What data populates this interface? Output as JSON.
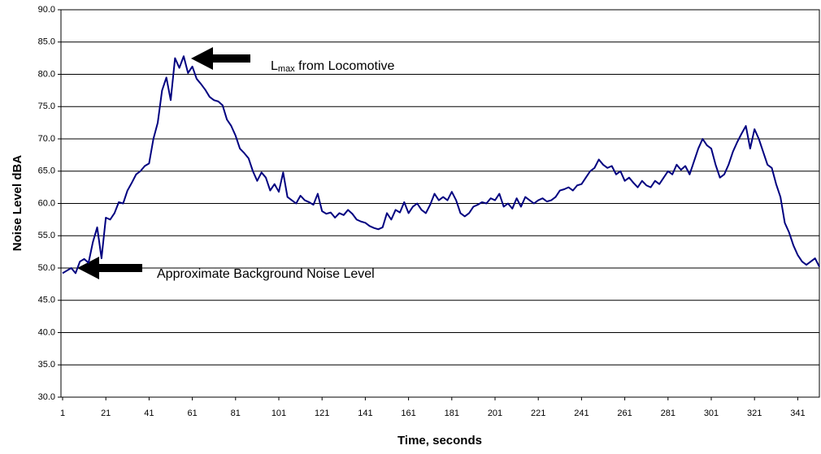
{
  "chart_data": {
    "type": "line",
    "xlabel": "Time, seconds",
    "ylabel": "Noise Level dBA",
    "annotations": [
      {
        "text": "L",
        "subscript": "max",
        "rest": " from Locomotive"
      },
      {
        "text": "Approximate Background Noise Level"
      }
    ],
    "x": [
      1,
      3,
      5,
      7,
      9,
      11,
      13,
      15,
      17,
      19,
      21,
      23,
      25,
      27,
      29,
      31,
      33,
      35,
      37,
      39,
      41,
      43,
      45,
      47,
      49,
      51,
      53,
      55,
      57,
      59,
      61,
      63,
      65,
      67,
      69,
      71,
      73,
      75,
      77,
      79,
      81,
      83,
      85,
      87,
      89,
      91,
      93,
      95,
      97,
      99,
      101,
      103,
      105,
      107,
      109,
      111,
      113,
      115,
      117,
      119,
      121,
      123,
      125,
      127,
      129,
      131,
      133,
      135,
      137,
      139,
      141,
      143,
      145,
      147,
      149,
      151,
      153,
      155,
      157,
      159,
      161,
      163,
      165,
      167,
      169,
      171,
      173,
      175,
      177,
      179,
      181,
      183,
      185,
      187,
      189,
      191,
      193,
      195,
      197,
      199,
      201,
      203,
      205,
      207,
      209,
      211,
      213,
      215,
      217,
      219,
      221,
      223,
      225,
      227,
      229,
      231,
      233,
      235,
      237,
      239,
      241,
      243,
      245,
      247,
      249,
      251,
      253,
      255,
      257,
      259,
      261,
      263,
      265,
      267,
      269,
      271,
      273,
      275,
      277,
      279,
      281,
      283,
      285,
      287,
      289,
      291,
      293,
      295,
      297,
      299,
      301,
      303,
      305,
      307,
      309,
      311,
      313,
      315,
      317,
      319,
      321,
      323,
      325,
      327,
      329,
      331,
      333,
      335,
      337,
      339,
      341,
      343,
      345,
      347,
      349,
      351
    ],
    "series": [
      {
        "name": "Noise Level",
        "color": "#000080",
        "values": [
          49.2,
          49.6,
          50.0,
          49.2,
          51.0,
          51.4,
          50.8,
          54.0,
          56.3,
          51.5,
          57.8,
          57.5,
          58.5,
          60.2,
          60.0,
          62.0,
          63.2,
          64.5,
          65.0,
          65.8,
          66.2,
          70.0,
          72.5,
          77.5,
          79.5,
          76.0,
          82.5,
          81.0,
          82.8,
          80.2,
          81.2,
          79.3,
          78.5,
          77.6,
          76.5,
          76.0,
          75.8,
          75.2,
          73.0,
          72.0,
          70.5,
          68.5,
          67.8,
          67.0,
          65.0,
          63.5,
          64.8,
          64.0,
          62.0,
          63.0,
          61.8,
          64.8,
          61.0,
          60.5,
          60.0,
          61.2,
          60.5,
          60.2,
          59.8,
          61.5,
          58.8,
          58.4,
          58.6,
          57.8,
          58.5,
          58.2,
          59.0,
          58.4,
          57.5,
          57.2,
          57.0,
          56.5,
          56.2,
          56.0,
          56.3,
          58.5,
          57.5,
          59.0,
          58.6,
          60.2,
          58.5,
          59.5,
          60.0,
          59.0,
          58.5,
          59.8,
          61.5,
          60.5,
          61.0,
          60.5,
          61.8,
          60.5,
          58.5,
          58.0,
          58.5,
          59.5,
          59.8,
          60.2,
          60.0,
          60.8,
          60.5,
          61.5,
          59.5,
          60.0,
          59.2,
          60.8,
          59.5,
          61.0,
          60.5,
          60.0,
          60.5,
          60.8,
          60.3,
          60.5,
          61.0,
          62.0,
          62.2,
          62.5,
          62.0,
          62.8,
          63.0,
          64.0,
          65.0,
          65.5,
          66.8,
          66.0,
          65.5,
          65.8,
          64.5,
          65.0,
          63.5,
          64.0,
          63.2,
          62.5,
          63.5,
          62.8,
          62.5,
          63.5,
          63.0,
          64.0,
          65.0,
          64.5,
          66.0,
          65.2,
          65.8,
          64.5,
          66.5,
          68.5,
          70.0,
          69.0,
          68.5,
          66.0,
          64.0,
          64.5,
          66.0,
          68.0,
          69.5,
          70.8,
          72.0,
          68.5,
          71.5,
          70.0,
          68.0,
          66.0,
          65.5,
          63.0,
          61.0,
          57.0,
          55.5,
          53.5,
          52.0,
          51.0,
          50.5,
          51.0,
          51.5,
          50.2
        ]
      }
    ],
    "xlim": [
      1,
      351
    ],
    "xticks": [
      1,
      21,
      41,
      61,
      81,
      101,
      121,
      141,
      161,
      181,
      201,
      221,
      241,
      261,
      281,
      301,
      321,
      341
    ],
    "ylim": [
      30,
      90
    ],
    "yticks": [
      {
        "value": 30,
        "label": "30.0"
      },
      {
        "value": 35,
        "label": "35.0"
      },
      {
        "value": 40,
        "label": "40.0"
      },
      {
        "value": 45,
        "label": "45.0"
      },
      {
        "value": 50,
        "label": "50.0"
      },
      {
        "value": 55,
        "label": "55.0"
      },
      {
        "value": 60,
        "label": "60.0"
      },
      {
        "value": 65,
        "label": "65.0"
      },
      {
        "value": 70,
        "label": "70.0"
      },
      {
        "value": 75,
        "label": "75.0"
      },
      {
        "value": 80,
        "label": "80.0"
      },
      {
        "value": 85,
        "label": "85.0"
      },
      {
        "value": 90,
        "label": "90.0"
      }
    ],
    "grid": true
  }
}
